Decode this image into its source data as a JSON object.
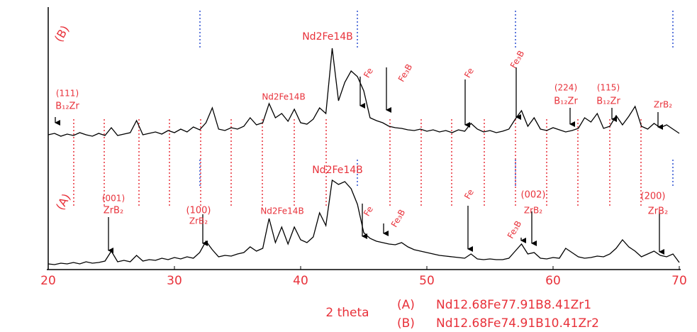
{
  "chart_data": {
    "type": "line",
    "x_label": "2 theta",
    "x": [
      20,
      20.5,
      21,
      21.5,
      22,
      22.5,
      23,
      23.5,
      24,
      24.5,
      25,
      25.5,
      26,
      26.5,
      27,
      27.5,
      28,
      28.5,
      29,
      29.5,
      30,
      30.5,
      31,
      31.5,
      32,
      32.5,
      33,
      33.5,
      34,
      34.5,
      35,
      35.5,
      36,
      36.5,
      37,
      37.5,
      38,
      38.5,
      39,
      39.5,
      40,
      40.5,
      41,
      41.5,
      42,
      42.5,
      43,
      43.5,
      44,
      44.5,
      45,
      45.5,
      46,
      46.5,
      47,
      47.5,
      48,
      48.5,
      49,
      49.5,
      50,
      50.5,
      51,
      51.5,
      52,
      52.5,
      53,
      53.5,
      54,
      54.5,
      55,
      55.5,
      56,
      56.5,
      57,
      57.5,
      58,
      58.5,
      59,
      59.5,
      60,
      60.5,
      61,
      61.5,
      62,
      62.5,
      63,
      63.5,
      64,
      64.5,
      65,
      65.5,
      66,
      66.5,
      67,
      67.5,
      68,
      68.5,
      69,
      69.5,
      70
    ],
    "series": [
      {
        "label": "(A)",
        "name": "Nd12.68Fe77.91B8.41Zr1",
        "color": "#000000",
        "values": [
          6,
          5,
          7,
          6,
          8,
          6,
          9,
          7,
          8,
          10,
          24,
          9,
          11,
          9,
          18,
          10,
          12,
          11,
          14,
          12,
          15,
          13,
          16,
          14,
          22,
          38,
          26,
          16,
          18,
          17,
          20,
          22,
          30,
          24,
          28,
          70,
          36,
          58,
          34,
          58,
          40,
          36,
          44,
          78,
          60,
          124,
          118,
          122,
          112,
          90,
          50,
          42,
          38,
          36,
          34,
          33,
          36,
          30,
          26,
          24,
          22,
          20,
          18,
          17,
          16,
          15,
          14,
          20,
          13,
          12,
          13,
          12,
          12,
          14,
          24,
          34,
          20,
          22,
          14,
          13,
          15,
          14,
          28,
          22,
          16,
          14,
          15,
          17,
          16,
          20,
          28,
          40,
          30,
          24,
          16,
          20,
          24,
          18,
          16,
          20,
          8
        ]
      },
      {
        "label": "(B)",
        "name": "Nd12.68Fe74.91B10.41Zr2",
        "color": "#000000",
        "values": [
          188,
          190,
          186,
          189,
          187,
          191,
          188,
          186,
          190,
          187,
          198,
          187,
          189,
          191,
          208,
          188,
          190,
          192,
          189,
          194,
          191,
          196,
          192,
          199,
          195,
          205,
          226,
          196,
          194,
          198,
          196,
          200,
          212,
          202,
          205,
          232,
          212,
          218,
          207,
          224,
          205,
          203,
          210,
          226,
          218,
          310,
          236,
          262,
          278,
          270,
          250,
          212,
          208,
          205,
          200,
          198,
          197,
          195,
          194,
          196,
          193,
          195,
          192,
          194,
          191,
          195,
          193,
          204,
          196,
          192,
          194,
          191,
          193,
          196,
          210,
          222,
          200,
          212,
          196,
          194,
          198,
          195,
          192,
          194,
          197,
          212,
          206,
          218,
          197,
          200,
          215,
          202,
          214,
          228,
          200,
          196,
          204,
          198,
          202,
          196,
          190
        ]
      }
    ],
    "xlim": [
      20,
      70
    ],
    "xticks": [
      20,
      30,
      40,
      50,
      60,
      70
    ],
    "ylim": [
      0,
      368
    ],
    "annotations": [
      "(B)",
      "Nd2Fe14B",
      "Fe",
      "Fe₃B",
      "Fe",
      "Fe₃B",
      "Nd2Fe14B",
      "(111)",
      "B₁₂Zr",
      "(224)",
      "B₁₂Zr",
      "(115)",
      "B₁₂Zr",
      "ZrB₂",
      "Nd2Fe14B",
      "(A)",
      "(001)",
      "ZrB₂",
      "(100)",
      "ZrB₂",
      "Nd2Fe14B",
      "Fe",
      "Fe₃B",
      "Fe",
      "Fe₃B",
      "(002)",
      "ZrB₂",
      "(200)",
      "ZrB₂"
    ]
  }
}
